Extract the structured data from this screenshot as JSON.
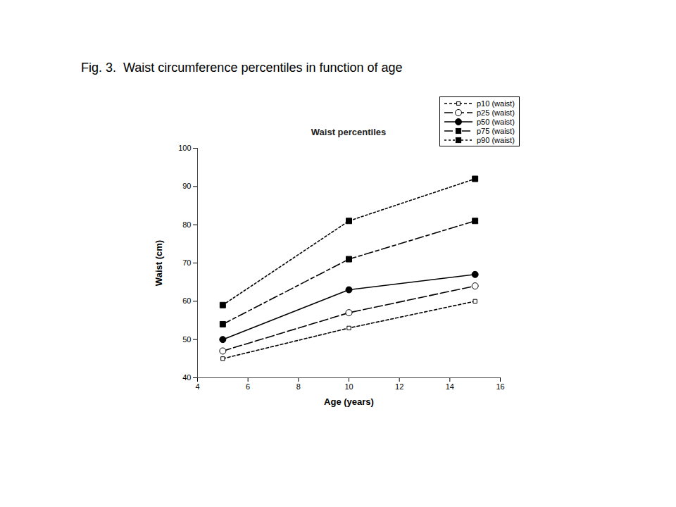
{
  "chart_data": {
    "type": "line",
    "caption": "Fig. 3.  Waist circumference percentiles in function of age",
    "title": "Waist percentiles",
    "x_label": "Age (years)",
    "y_label": "Waist (cm)",
    "x": [
      5,
      10,
      15
    ],
    "series": [
      {
        "name": "p10 (waist)",
        "color": "#000000",
        "marker": "square_open",
        "line_style": "dashed",
        "values": [
          45,
          53,
          60
        ]
      },
      {
        "name": "p25 (waist)",
        "color": "#000000",
        "marker": "circle_open",
        "line_style": "longdash",
        "values": [
          47,
          57,
          64
        ]
      },
      {
        "name": "p50 (waist)",
        "color": "#000000",
        "marker": "circle",
        "line_style": "solid",
        "values": [
          50,
          63,
          67
        ]
      },
      {
        "name": "p75 (waist)",
        "color": "#000000",
        "marker": "square",
        "line_style": "dashdot",
        "values": [
          54,
          71,
          81
        ]
      },
      {
        "name": "p90 (waist)",
        "color": "#000000",
        "marker": "square",
        "line_style": "dotted",
        "values": [
          59,
          81,
          92
        ]
      }
    ],
    "xlim": [
      4,
      16
    ],
    "xticks": [
      4,
      6,
      8,
      10,
      12,
      14,
      16
    ],
    "ylim": [
      40,
      100
    ],
    "yticks": [
      40,
      50,
      60,
      70,
      80,
      90,
      100
    ],
    "grid": false,
    "legend": "upper right"
  }
}
